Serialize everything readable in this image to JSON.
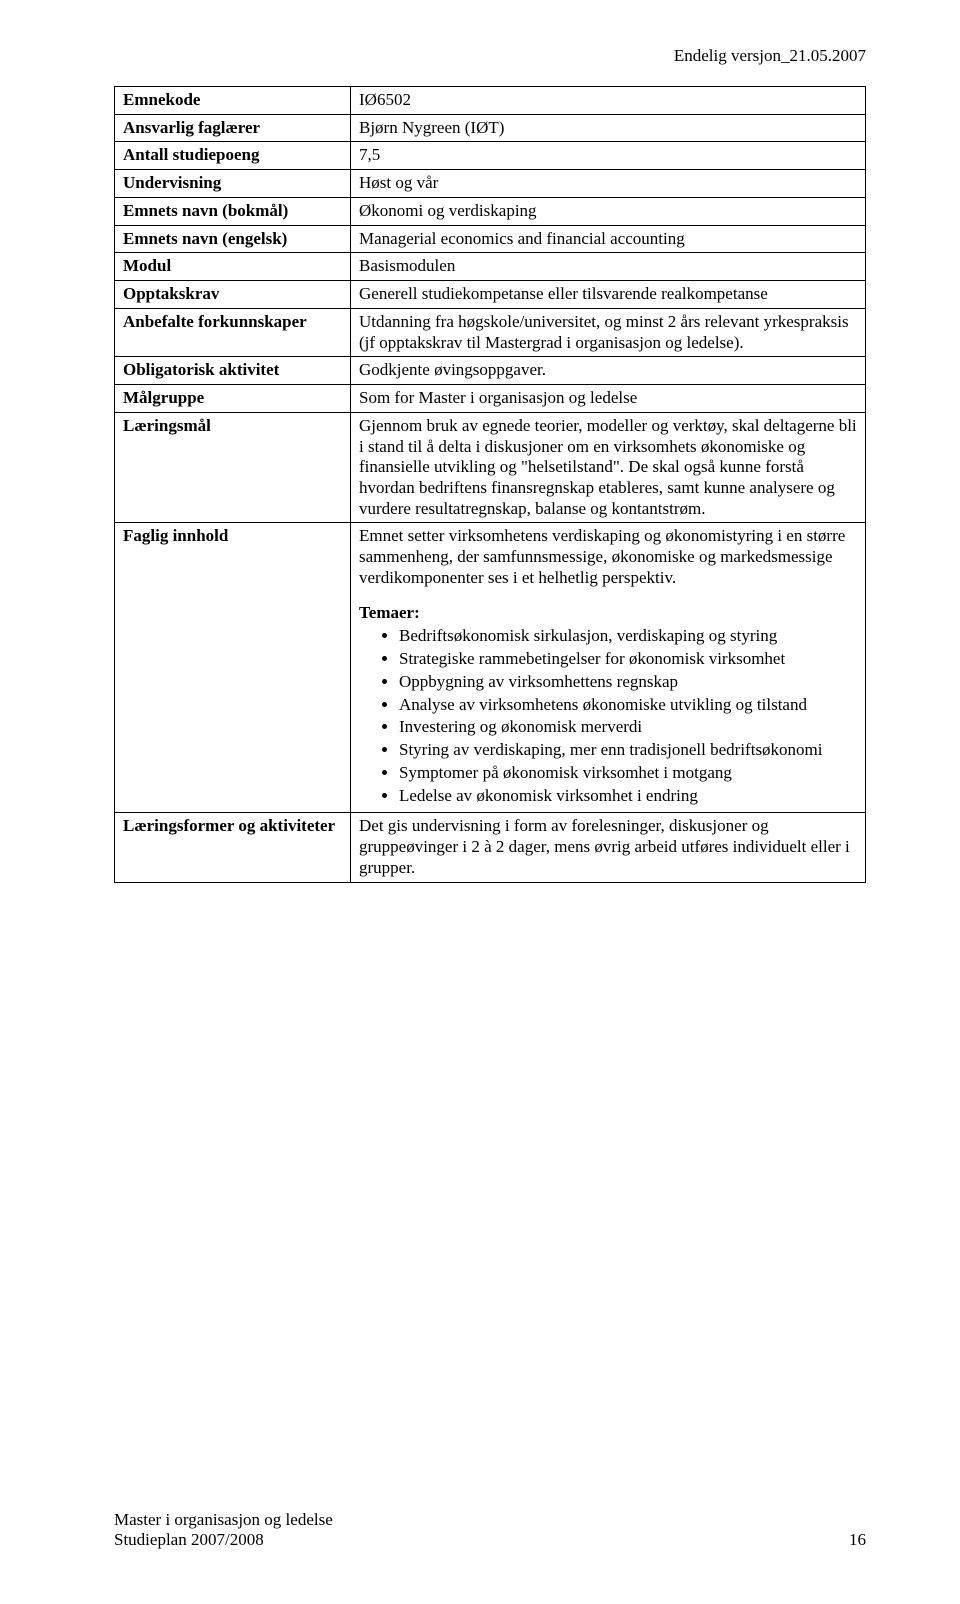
{
  "header_right": "Endelig versjon_21.05.2007",
  "rows": [
    {
      "label": "Emnekode",
      "value": "IØ6502"
    },
    {
      "label": "Ansvarlig faglærer",
      "value": "Bjørn Nygreen (IØT)"
    },
    {
      "label": "Antall studiepoeng",
      "value": "7,5"
    },
    {
      "label": "Undervisning",
      "value": "Høst og vår"
    },
    {
      "label": "Emnets navn (bokmål)",
      "value": "Økonomi og verdiskaping"
    },
    {
      "label": "Emnets navn (engelsk)",
      "value": "Managerial economics and financial accounting"
    },
    {
      "label": "Modul",
      "value": "Basismodulen"
    },
    {
      "label": "Opptakskrav",
      "value": "Generell studiekompetanse eller tilsvarende realkompetanse"
    },
    {
      "label": "Anbefalte forkunnskaper",
      "value": "Utdanning fra høgskole/universitet, og minst 2 års relevant yrkespraksis (jf opptakskrav til Mastergrad i organisasjon og ledelse)."
    },
    {
      "label": "Obligatorisk aktivitet",
      "value": "Godkjente øvingsoppgaver."
    },
    {
      "label": "Målgruppe",
      "value": "Som for Master i organisasjon og ledelse"
    },
    {
      "label": "Læringsmål",
      "value": "Gjennom bruk av egnede teorier, modeller og verktøy, skal deltagerne bli i stand til å delta i diskusjoner om en virksomhets økonomiske og finansielle utvikling og \"helsetilstand\". De skal også kunne forstå hvordan bedriftens finansregnskap etableres, samt kunne analysere og vurdere resultatregnskap, balanse og kontantstrøm."
    }
  ],
  "faglig": {
    "label": "Faglig innhold",
    "intro": "Emnet setter virksomhetens verdiskaping og økonomistyring i en større sammenheng, der samfunnsmessige, økonomiske og markedsmessige verdikomponenter ses i et helhetlig perspektiv.",
    "topics_heading": "Temaer:",
    "topics": [
      "Bedriftsøkonomisk sirkulasjon, verdiskaping og styring",
      "Strategiske rammebetingelser for økonomisk virksomhet",
      "Oppbygning av virksomhettens regnskap",
      "Analyse av virksomhetens økonomiske utvikling og tilstand",
      "Investering og økonomisk merverdi",
      "Styring av verdiskaping, mer enn tradisjonell bedriftsøkonomi",
      "Symptomer på økonomisk virksomhet i motgang",
      "Ledelse av økonomisk virksomhet i endring"
    ]
  },
  "laeringsformer": {
    "label": "Læringsformer og aktiviteter",
    "value": "Det gis undervisning i form av forelesninger, diskusjoner og gruppeøvinger i 2 à 2 dager, mens øvrig arbeid utføres individuelt eller i grupper."
  },
  "footer": {
    "line1": "Master i organisasjon og ledelse",
    "line2": "Studieplan 2007/2008",
    "page": "16"
  }
}
